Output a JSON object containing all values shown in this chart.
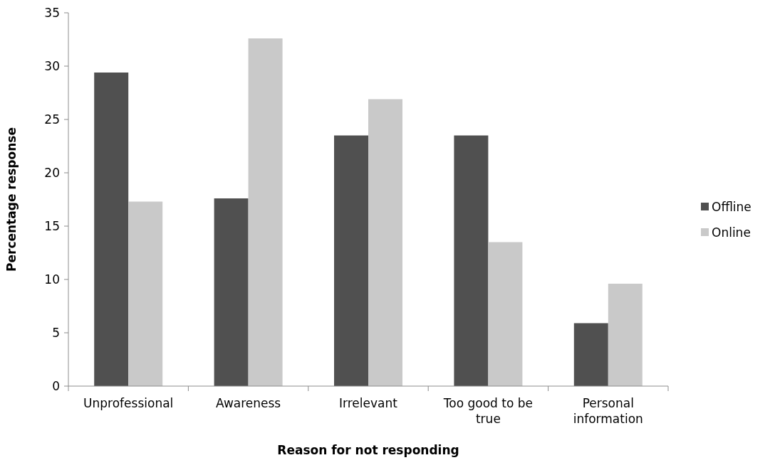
{
  "chart_data": {
    "type": "bar",
    "xlabel": "Reason for not responding",
    "ylabel": "Percentage response",
    "categories": [
      "Unprofessional",
      "Awareness",
      "Irrelevant",
      "Too good to be true",
      "Personal information"
    ],
    "series": [
      {
        "name": "Offline",
        "color": "#505050",
        "values": [
          29.4,
          17.6,
          23.5,
          23.5,
          5.9
        ]
      },
      {
        "name": "Online",
        "color": "#c9c9c9",
        "values": [
          17.3,
          32.6,
          26.9,
          13.5,
          9.6
        ]
      }
    ],
    "ylim": [
      0,
      35
    ],
    "yticks": [
      0,
      5,
      10,
      15,
      20,
      25,
      30,
      35
    ],
    "grid": false,
    "legend": "right"
  }
}
